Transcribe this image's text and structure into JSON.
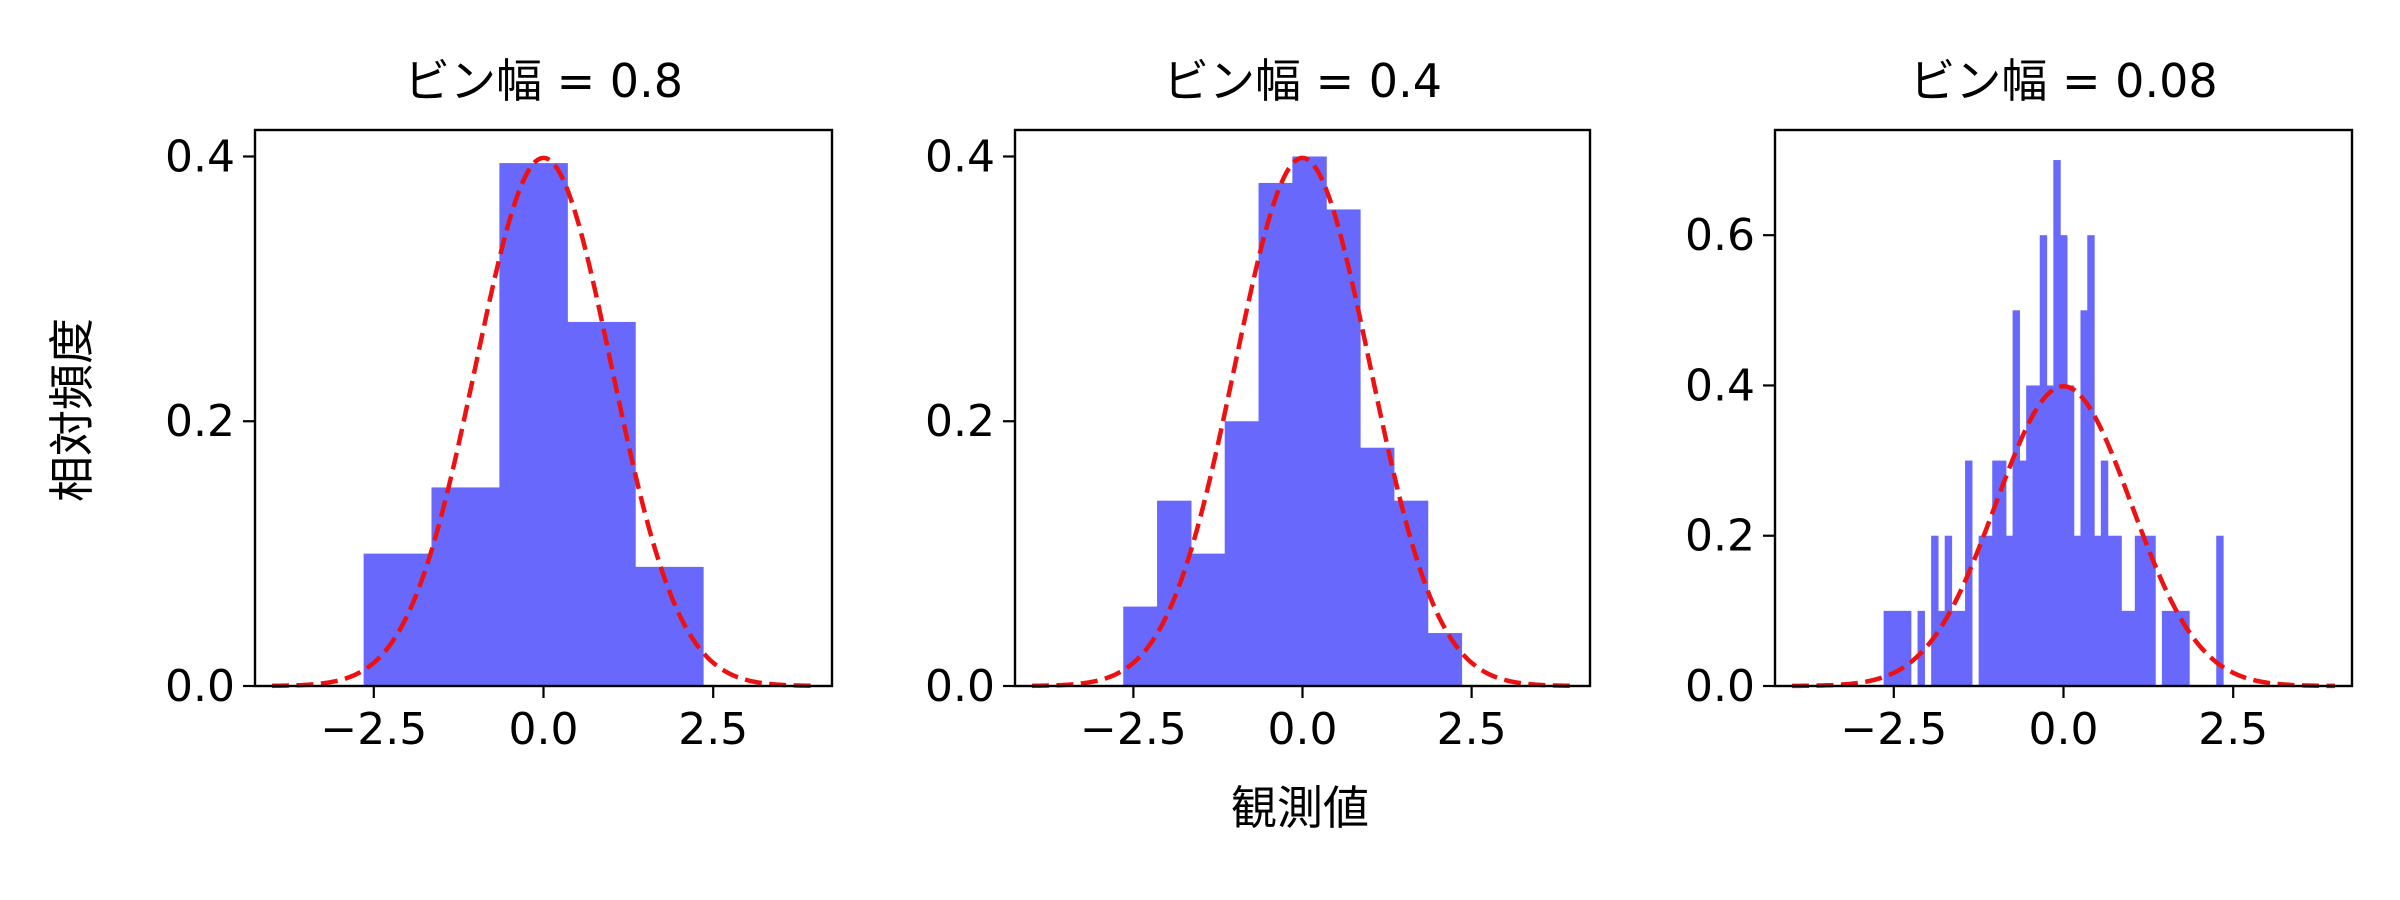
{
  "figure": {
    "ylabel": "相対頻度",
    "xlabel": "観測値"
  },
  "chart_data": [
    {
      "type": "bar",
      "title": "ビン幅 = 0.8",
      "bar_color": "#6868fc",
      "curve_color": "#ee1111",
      "xlim": [
        -4.25,
        4.25
      ],
      "ylim": [
        0,
        0.42
      ],
      "xticks": [
        -2.5,
        0.0,
        2.5
      ],
      "xtick_labels": [
        "−2.5",
        "0.0",
        "2.5"
      ],
      "yticks": [
        0.0,
        0.2,
        0.4
      ],
      "ytick_labels": [
        "0.0",
        "0.2",
        "0.4"
      ],
      "bins": [
        {
          "x0": -2.65,
          "x1": -1.65,
          "value": 0.1
        },
        {
          "x0": -1.65,
          "x1": -0.65,
          "value": 0.15
        },
        {
          "x0": -0.65,
          "x1": 0.35,
          "value": 0.395
        },
        {
          "x0": 0.35,
          "x1": 1.35,
          "value": 0.275
        },
        {
          "x0": 1.35,
          "x1": 2.35,
          "value": 0.09
        }
      ],
      "curve": {
        "label": "",
        "type": "normal-pdf",
        "mean": 0.0,
        "sd": 1.0,
        "x_range": [
          -4,
          4
        ],
        "style": "dashed"
      }
    },
    {
      "type": "bar",
      "title": "ビン幅 = 0.4",
      "bar_color": "#6868fc",
      "curve_color": "#ee1111",
      "xlim": [
        -4.25,
        4.25
      ],
      "ylim": [
        0,
        0.42
      ],
      "xticks": [
        -2.5,
        0.0,
        2.5
      ],
      "xtick_labels": [
        "−2.5",
        "0.0",
        "2.5"
      ],
      "yticks": [
        0.0,
        0.2,
        0.4
      ],
      "ytick_labels": [
        "0.0",
        "0.2",
        "0.4"
      ],
      "bins": [
        {
          "x0": -2.65,
          "x1": -2.15,
          "value": 0.06
        },
        {
          "x0": -2.15,
          "x1": -1.65,
          "value": 0.14
        },
        {
          "x0": -1.65,
          "x1": -1.15,
          "value": 0.1
        },
        {
          "x0": -1.15,
          "x1": -0.65,
          "value": 0.2
        },
        {
          "x0": -0.65,
          "x1": -0.15,
          "value": 0.38
        },
        {
          "x0": -0.15,
          "x1": 0.35,
          "value": 0.4
        },
        {
          "x0": 0.35,
          "x1": 0.85,
          "value": 0.36
        },
        {
          "x0": 0.85,
          "x1": 1.35,
          "value": 0.18
        },
        {
          "x0": 1.35,
          "x1": 1.85,
          "value": 0.14
        },
        {
          "x0": 1.85,
          "x1": 2.35,
          "value": 0.04
        }
      ],
      "curve": {
        "label": "",
        "type": "normal-pdf",
        "mean": 0.0,
        "sd": 1.0,
        "x_range": [
          -4,
          4
        ],
        "style": "dashed"
      }
    },
    {
      "type": "bar",
      "title": "ビン幅 = 0.08",
      "bar_color": "#6868fc",
      "curve_color": "#ee1111",
      "xlim": [
        -4.25,
        4.25
      ],
      "ylim": [
        0,
        0.74
      ],
      "xticks": [
        -2.5,
        0.0,
        2.5
      ],
      "xtick_labels": [
        "−2.5",
        "0.0",
        "2.5"
      ],
      "yticks": [
        0.0,
        0.2,
        0.4,
        0.6
      ],
      "ytick_labels": [
        "0.0",
        "0.2",
        "0.4",
        "0.6"
      ],
      "bins": [
        {
          "x0": -2.65,
          "x1": -2.55,
          "value": 0.1
        },
        {
          "x0": -2.55,
          "x1": -2.45,
          "value": 0.1
        },
        {
          "x0": -2.45,
          "x1": -2.35,
          "value": 0.1
        },
        {
          "x0": -2.35,
          "x1": -2.25,
          "value": 0.1
        },
        {
          "x0": -2.15,
          "x1": -2.05,
          "value": 0.1
        },
        {
          "x0": -1.95,
          "x1": -1.85,
          "value": 0.2
        },
        {
          "x0": -1.85,
          "x1": -1.75,
          "value": 0.1
        },
        {
          "x0": -1.75,
          "x1": -1.65,
          "value": 0.2
        },
        {
          "x0": -1.65,
          "x1": -1.55,
          "value": 0.1
        },
        {
          "x0": -1.55,
          "x1": -1.45,
          "value": 0.1
        },
        {
          "x0": -1.45,
          "x1": -1.35,
          "value": 0.3
        },
        {
          "x0": -1.25,
          "x1": -1.15,
          "value": 0.2
        },
        {
          "x0": -1.15,
          "x1": -1.05,
          "value": 0.2
        },
        {
          "x0": -1.05,
          "x1": -0.95,
          "value": 0.3
        },
        {
          "x0": -0.95,
          "x1": -0.85,
          "value": 0.3
        },
        {
          "x0": -0.85,
          "x1": -0.75,
          "value": 0.2
        },
        {
          "x0": -0.75,
          "x1": -0.65,
          "value": 0.5
        },
        {
          "x0": -0.65,
          "x1": -0.55,
          "value": 0.3
        },
        {
          "x0": -0.55,
          "x1": -0.45,
          "value": 0.4
        },
        {
          "x0": -0.45,
          "x1": -0.35,
          "value": 0.4
        },
        {
          "x0": -0.35,
          "x1": -0.25,
          "value": 0.6
        },
        {
          "x0": -0.25,
          "x1": -0.15,
          "value": 0.4
        },
        {
          "x0": -0.15,
          "x1": -0.05,
          "value": 0.7
        },
        {
          "x0": -0.05,
          "x1": 0.05,
          "value": 0.6
        },
        {
          "x0": 0.05,
          "x1": 0.15,
          "value": 0.4
        },
        {
          "x0": 0.15,
          "x1": 0.25,
          "value": 0.2
        },
        {
          "x0": 0.25,
          "x1": 0.35,
          "value": 0.5
        },
        {
          "x0": 0.35,
          "x1": 0.45,
          "value": 0.6
        },
        {
          "x0": 0.45,
          "x1": 0.55,
          "value": 0.2
        },
        {
          "x0": 0.55,
          "x1": 0.65,
          "value": 0.3
        },
        {
          "x0": 0.65,
          "x1": 0.75,
          "value": 0.2
        },
        {
          "x0": 0.75,
          "x1": 0.85,
          "value": 0.2
        },
        {
          "x0": 0.85,
          "x1": 0.95,
          "value": 0.1
        },
        {
          "x0": 0.95,
          "x1": 1.05,
          "value": 0.1
        },
        {
          "x0": 1.05,
          "x1": 1.15,
          "value": 0.2
        },
        {
          "x0": 1.15,
          "x1": 1.25,
          "value": 0.2
        },
        {
          "x0": 1.25,
          "x1": 1.35,
          "value": 0.2
        },
        {
          "x0": 1.45,
          "x1": 1.55,
          "value": 0.1
        },
        {
          "x0": 1.55,
          "x1": 1.65,
          "value": 0.1
        },
        {
          "x0": 1.65,
          "x1": 1.75,
          "value": 0.1
        },
        {
          "x0": 1.75,
          "x1": 1.85,
          "value": 0.1
        },
        {
          "x0": 2.25,
          "x1": 2.35,
          "value": 0.2
        }
      ],
      "curve": {
        "label": "",
        "type": "normal-pdf",
        "mean": 0.0,
        "sd": 1.0,
        "x_range": [
          -4,
          4
        ],
        "style": "dashed"
      }
    }
  ]
}
